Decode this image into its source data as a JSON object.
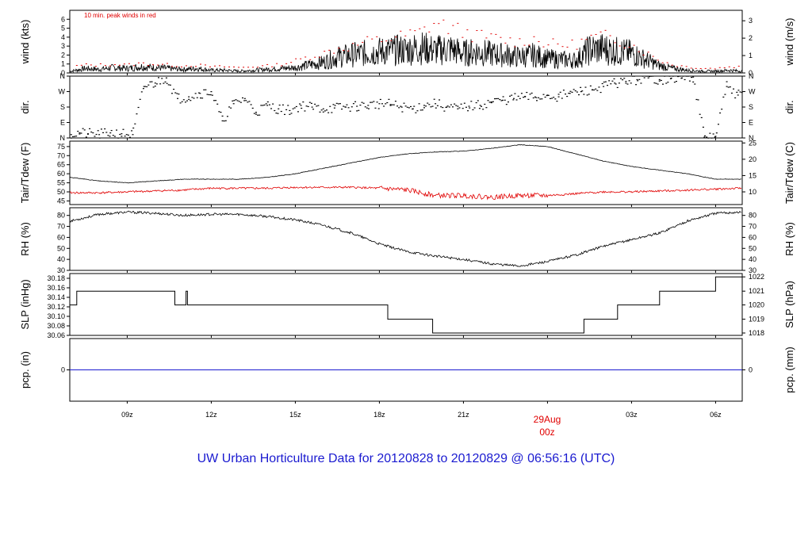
{
  "title": "UW Urban Horticulture Data for 20120828  to  20120829 @ 06:56:16  (UTC)",
  "colors": {
    "axis": "#000000",
    "secondary": "#e00000",
    "pcp": "#1a1ad0",
    "title": "#1a1ad0"
  },
  "time_axis": {
    "start_hour": 6.95,
    "end_hour": 30.95,
    "ticks": [
      {
        "hour": 9,
        "label": "09z"
      },
      {
        "hour": 12,
        "label": "12z"
      },
      {
        "hour": 15,
        "label": "15z"
      },
      {
        "hour": 18,
        "label": "18z"
      },
      {
        "hour": 21,
        "label": "21z"
      },
      {
        "hour": 24,
        "label": "00z"
      },
      {
        "hour": 27,
        "label": "03z"
      },
      {
        "hour": 30,
        "label": "06z"
      }
    ],
    "date_marker": {
      "hour": 24,
      "date_label": "29Aug",
      "time_label": "00z"
    }
  },
  "panels": {
    "wind": {
      "ylabel_left": "wind (kts)",
      "ylabel_right": "wind (m/s)",
      "ylim": [
        0,
        7
      ],
      "left_ticks": [
        0,
        1,
        2,
        3,
        4,
        5,
        6
      ],
      "right_ticks": [
        {
          "v": 0,
          "l": "0"
        },
        {
          "v": 1.944,
          "l": "1"
        },
        {
          "v": 3.888,
          "l": "2"
        },
        {
          "v": 5.832,
          "l": "3"
        }
      ],
      "annotation": "10 min. peak winds in red",
      "chart_data": {
        "type": "line",
        "series": [
          {
            "name": "wind speed",
            "x": [
              7,
              7.5,
              8,
              8.5,
              9,
              9.5,
              10,
              10.5,
              11,
              11.5,
              12,
              12.5,
              13,
              13.5,
              14,
              14.5,
              15,
              15.5,
              16,
              16.5,
              17,
              17.5,
              18,
              18.5,
              19,
              19.5,
              20,
              20.5,
              21,
              21.5,
              22,
              22.5,
              23,
              23.5,
              24,
              24.5,
              25,
              25.5,
              26,
              26.5,
              27,
              27.5,
              28,
              28.5,
              29,
              29.5,
              30,
              30.5,
              30.9
            ],
            "y": [
              0.2,
              0.5,
              0.4,
              0.6,
              0.5,
              0.7,
              0.6,
              0.5,
              0.4,
              0.5,
              0.3,
              0.3,
              0.2,
              0.3,
              0.4,
              0.5,
              0.6,
              0.9,
              1.2,
              1.8,
              2.0,
              2.2,
              2.4,
              2.5,
              2.6,
              2.8,
              2.5,
              2.7,
              2.2,
              2.4,
              2.1,
              2.0,
              1.8,
              2.0,
              1.6,
              1.5,
              1.4,
              2.6,
              2.7,
              2.4,
              2.2,
              1.5,
              0.8,
              0.5,
              0.3,
              0.2,
              0.2,
              0.3,
              0.2
            ]
          },
          {
            "name": "10 min peak",
            "x": [
              7,
              7.5,
              8,
              8.5,
              9,
              9.5,
              10,
              10.5,
              11,
              11.5,
              12,
              12.5,
              13,
              13.5,
              14,
              14.5,
              15,
              15.5,
              16,
              16.5,
              17,
              17.5,
              18,
              18.5,
              19,
              19.5,
              20,
              20.5,
              21,
              21.5,
              22,
              22.5,
              23,
              23.5,
              24,
              24.5,
              25,
              25.5,
              26,
              26.5,
              27,
              27.5,
              28,
              28.5,
              29,
              29.5,
              30,
              30.5,
              30.9
            ],
            "y": [
              0.8,
              1.0,
              1.0,
              1.1,
              1.0,
              1.2,
              1.1,
              1.0,
              0.9,
              1.0,
              0.8,
              0.8,
              0.7,
              0.8,
              0.9,
              1.1,
              1.5,
              2.0,
              2.4,
              3.0,
              3.2,
              3.8,
              4.0,
              4.3,
              4.6,
              5.0,
              6.2,
              5.5,
              5.0,
              4.5,
              4.3,
              4.0,
              3.8,
              4.2,
              3.6,
              3.4,
              3.5,
              4.2,
              4.5,
              4.0,
              3.5,
              2.5,
              1.6,
              1.0,
              0.8,
              0.6,
              0.6,
              0.8,
              0.8
            ]
          }
        ]
      }
    },
    "dir": {
      "ylabel_left": "dir.",
      "ylabel_right": "dir.",
      "ylim": [
        0,
        360
      ],
      "ticks": [
        {
          "v": 0,
          "l": "N"
        },
        {
          "v": 90,
          "l": "E"
        },
        {
          "v": 180,
          "l": "S"
        },
        {
          "v": 270,
          "l": "W"
        },
        {
          "v": 360,
          "l": "N"
        }
      ],
      "chart_data": {
        "type": "scatter",
        "x": [
          7,
          7.3,
          7.6,
          8,
          8.4,
          8.8,
          9.2,
          9.6,
          10,
          10.4,
          10.8,
          11.2,
          11.6,
          12,
          12.4,
          12.8,
          13.2,
          13.6,
          14,
          14.4,
          14.8,
          15.2,
          15.6,
          16,
          16.4,
          16.8,
          17.2,
          17.6,
          18,
          18.4,
          18.8,
          19.2,
          19.6,
          20,
          20.4,
          20.8,
          21.2,
          21.6,
          22,
          22.4,
          22.8,
          23.2,
          23.6,
          24,
          24.4,
          24.8,
          25.2,
          25.6,
          26,
          26.4,
          26.8,
          27.2,
          27.6,
          28,
          28.4,
          28.8,
          29.2,
          29.6,
          30,
          30.4,
          30.8
        ],
        "y": [
          20,
          30,
          25,
          20,
          30,
          25,
          20,
          300,
          320,
          350,
          230,
          240,
          260,
          270,
          100,
          200,
          230,
          150,
          190,
          170,
          160,
          190,
          180,
          170,
          175,
          180,
          185,
          190,
          200,
          195,
          180,
          170,
          190,
          200,
          180,
          170,
          185,
          190,
          210,
          220,
          230,
          240,
          235,
          250,
          240,
          260,
          270,
          280,
          300,
          320,
          330,
          340,
          350,
          340,
          345,
          350,
          355,
          5,
          10,
          300,
          250
        ]
      }
    },
    "temp": {
      "ylabel_left": "Tair/Tdew (F)",
      "ylabel_right": "Tair/Tdew (C)",
      "ylim": [
        43,
        78
      ],
      "left_ticks": [
        45,
        50,
        55,
        60,
        65,
        70,
        75
      ],
      "right_ticks": [
        {
          "v": 50,
          "l": "10"
        },
        {
          "v": 59,
          "l": "15"
        },
        {
          "v": 68,
          "l": "20"
        },
        {
          "v": 77,
          "l": "25"
        }
      ],
      "chart_data": {
        "type": "line",
        "series": [
          {
            "name": "Tair",
            "x": [
              7,
              8,
              9,
              10,
              11,
              12,
              13,
              14,
              15,
              16,
              17,
              18,
              19,
              20,
              21,
              22,
              23,
              24,
              25,
              26,
              27,
              28,
              29,
              30,
              30.9
            ],
            "y": [
              58,
              56,
              55,
              56,
              57,
              57,
              57,
              58,
              60,
              63,
              66,
              69,
              71,
              72,
              72.5,
              74,
              76,
              75,
              71,
              67,
              64,
              62,
              60,
              57,
              57
            ]
          },
          {
            "name": "Tdew",
            "x": [
              7,
              8,
              9,
              10,
              11,
              12,
              13,
              14,
              15,
              16,
              17,
              18,
              19,
              20,
              21,
              22,
              23,
              24,
              25,
              26,
              27,
              28,
              29,
              30,
              30.9
            ],
            "y": [
              49.5,
              49.5,
              50,
              50.5,
              51,
              52,
              52,
              52,
              52.5,
              52.5,
              52.5,
              52,
              51,
              48,
              48,
              47,
              48,
              48,
              49,
              50,
              50,
              50.5,
              51,
              51.5,
              52
            ]
          }
        ]
      }
    },
    "rh": {
      "ylabel_left": "RH (%)",
      "ylabel_right": "RH (%)",
      "ylim": [
        30,
        87
      ],
      "ticks": [
        30,
        40,
        50,
        60,
        70,
        80
      ],
      "chart_data": {
        "type": "line",
        "x": [
          7,
          8,
          9,
          10,
          11,
          12,
          13,
          14,
          15,
          16,
          17,
          18,
          19,
          20,
          21,
          22,
          23,
          24,
          25,
          26,
          27,
          28,
          29,
          30,
          30.9
        ],
        "y": [
          75,
          81,
          83,
          82,
          80,
          81,
          81,
          79,
          76,
          71,
          64,
          54,
          47,
          43,
          40,
          36,
          34,
          38,
          44,
          52,
          58,
          64,
          75,
          82,
          83
        ]
      }
    },
    "slp": {
      "ylabel_left": "SLP (inHg)",
      "ylabel_right": "SLP (hPa)",
      "ylim": [
        30.06,
        30.19
      ],
      "left_ticks": [
        "30.06",
        "30.08",
        "30.10",
        "30.12",
        "30.14",
        "30.16",
        "30.18"
      ],
      "right_ticks": [
        {
          "v": 30.065,
          "l": "1018"
        },
        {
          "v": 30.094,
          "l": "1019"
        },
        {
          "v": 30.124,
          "l": "1020"
        },
        {
          "v": 30.153,
          "l": "1021"
        },
        {
          "v": 30.183,
          "l": "1022"
        }
      ],
      "chart_data": {
        "type": "line",
        "x": [
          6.95,
          7.2,
          7.2,
          10.7,
          10.7,
          11.1,
          11.1,
          11.15,
          11.15,
          18.3,
          18.3,
          19.9,
          19.9,
          25.3,
          25.3,
          26.5,
          26.5,
          28.0,
          28.0,
          30.0,
          30.0,
          30.95
        ],
        "y": [
          30.124,
          30.124,
          30.153,
          30.153,
          30.124,
          30.124,
          30.153,
          30.153,
          30.124,
          30.124,
          30.094,
          30.094,
          30.065,
          30.065,
          30.094,
          30.094,
          30.124,
          30.124,
          30.153,
          30.153,
          30.183,
          30.183
        ]
      }
    },
    "pcp": {
      "ylabel_left": "pcp. (in)",
      "ylabel_right": "pcp. (mm)",
      "ylim": [
        -1,
        1
      ],
      "left_tick": "0",
      "right_tick": "0",
      "chart_data": {
        "type": "line",
        "x": [
          6.95,
          30.95
        ],
        "y": [
          0,
          0
        ]
      }
    }
  }
}
